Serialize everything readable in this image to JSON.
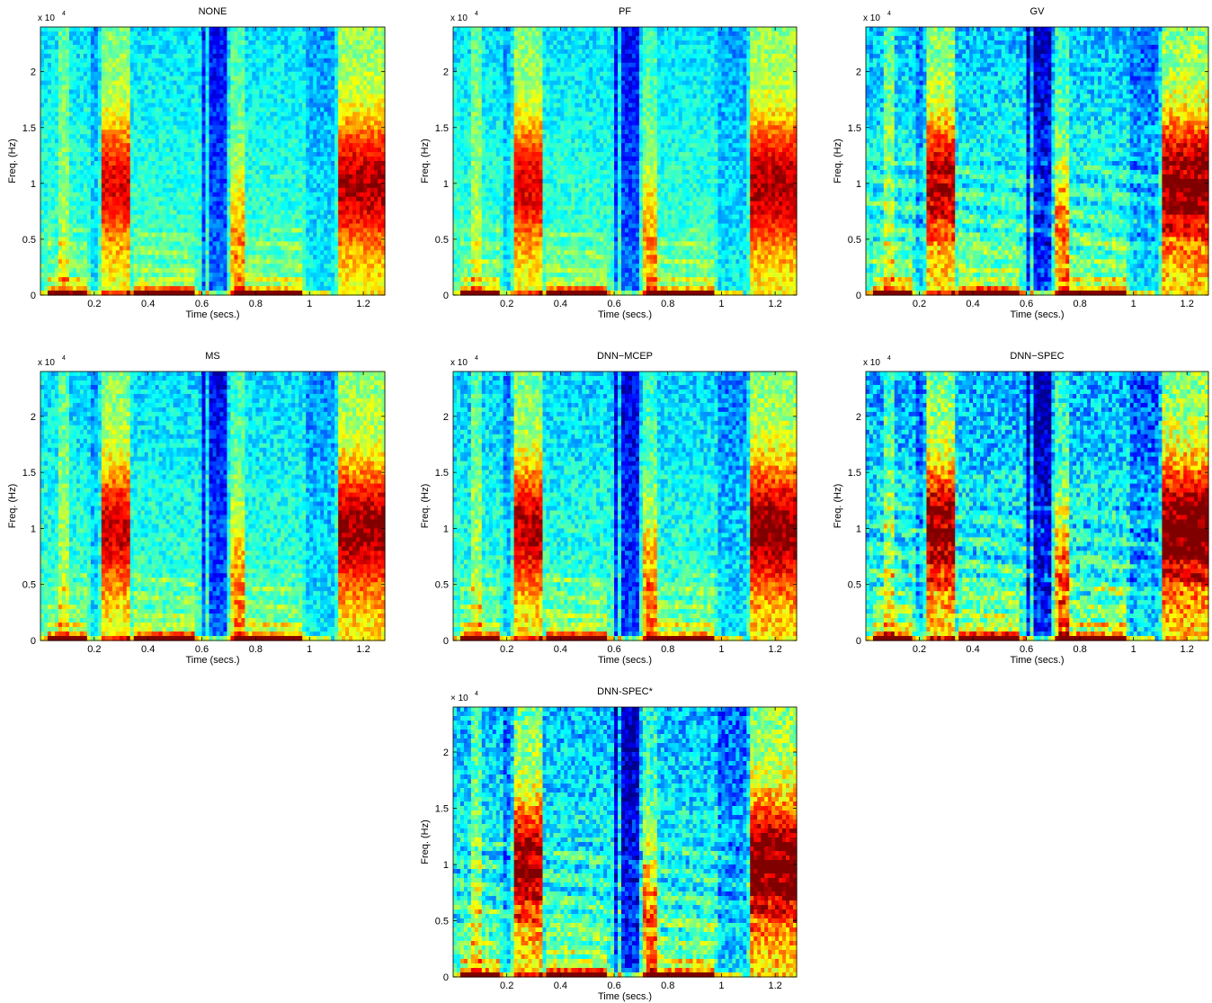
{
  "chart_data": [
    {
      "type": "heatmap",
      "title": "NONE",
      "xlabel": "Time (secs.)",
      "ylabel": "Freq. (Hz)",
      "y_exponent": "x 10",
      "y_exponent_power": "4",
      "xlim": [
        0,
        1.28
      ],
      "ylim": [
        0,
        2.4
      ],
      "xticks": [
        0.2,
        0.4,
        0.6,
        0.8,
        1,
        1.2
      ],
      "xtick_labels": [
        "0.2",
        "0.4",
        "0.6",
        "0.8",
        "1",
        "1.2"
      ],
      "yticks": [
        0,
        0.5,
        1,
        1.5,
        2
      ],
      "ytick_labels": [
        "0",
        "0.5",
        "1",
        "1.5",
        "2"
      ],
      "variant": "none"
    },
    {
      "type": "heatmap",
      "title": "PF",
      "xlabel": "Time (secs.)",
      "ylabel": "Freq. (Hz)",
      "y_exponent": "x 10",
      "y_exponent_power": "4",
      "xlim": [
        0,
        1.28
      ],
      "ylim": [
        0,
        2.4
      ],
      "xticks": [
        0.2,
        0.4,
        0.6,
        0.8,
        1,
        1.2
      ],
      "xtick_labels": [
        "0.2",
        "0.4",
        "0.6",
        "0.8",
        "1",
        "1.2"
      ],
      "yticks": [
        0,
        0.5,
        1,
        1.5,
        2
      ],
      "ytick_labels": [
        "0",
        "0.5",
        "1",
        "1.5",
        "2"
      ],
      "variant": "pf"
    },
    {
      "type": "heatmap",
      "title": "GV",
      "xlabel": "Time (secs.)",
      "ylabel": "Freq. (Hz)",
      "y_exponent": "x 10",
      "y_exponent_power": "4",
      "xlim": [
        0,
        1.28
      ],
      "ylim": [
        0,
        2.4
      ],
      "xticks": [
        0.2,
        0.4,
        0.6,
        0.8,
        1,
        1.2
      ],
      "xtick_labels": [
        "0.2",
        "0.4",
        "0.6",
        "0.8",
        "1",
        "1.2"
      ],
      "yticks": [
        0,
        0.5,
        1,
        1.5,
        2
      ],
      "ytick_labels": [
        "0",
        "0.5",
        "1",
        "1.5",
        "2"
      ],
      "variant": "gv"
    },
    {
      "type": "heatmap",
      "title": "MS",
      "xlabel": "Time (secs.)",
      "ylabel": "Freq. (Hz)",
      "y_exponent": "x 10",
      "y_exponent_power": "4",
      "xlim": [
        0,
        1.28
      ],
      "ylim": [
        0,
        2.4
      ],
      "xticks": [
        0.2,
        0.4,
        0.6,
        0.8,
        1,
        1.2
      ],
      "xtick_labels": [
        "0.2",
        "0.4",
        "0.6",
        "0.8",
        "1",
        "1.2"
      ],
      "yticks": [
        0,
        0.5,
        1,
        1.5,
        2
      ],
      "ytick_labels": [
        "0",
        "0.5",
        "1",
        "1.5",
        "2"
      ],
      "variant": "ms"
    },
    {
      "type": "heatmap",
      "title": "DNN−MCEP",
      "xlabel": "Time (secs.)",
      "ylabel": "Freq. (Hz)",
      "y_exponent": "x 10",
      "y_exponent_power": "4",
      "xlim": [
        0,
        1.28
      ],
      "ylim": [
        0,
        2.4
      ],
      "xticks": [
        0.2,
        0.4,
        0.6,
        0.8,
        1,
        1.2
      ],
      "xtick_labels": [
        "0.2",
        "0.4",
        "0.6",
        "0.8",
        "1",
        "1.2"
      ],
      "yticks": [
        0,
        0.5,
        1,
        1.5,
        2
      ],
      "ytick_labels": [
        "0",
        "0.5",
        "1",
        "1.5",
        "2"
      ],
      "variant": "mcep"
    },
    {
      "type": "heatmap",
      "title": "DNN−SPEC",
      "xlabel": "Time (secs.)",
      "ylabel": "Freq. (Hz)",
      "y_exponent": "x 10",
      "y_exponent_power": "4",
      "xlim": [
        0,
        1.28
      ],
      "ylim": [
        0,
        2.4
      ],
      "xticks": [
        0.2,
        0.4,
        0.6,
        0.8,
        1,
        1.2
      ],
      "xtick_labels": [
        "0.2",
        "0.4",
        "0.6",
        "0.8",
        "1",
        "1.2"
      ],
      "yticks": [
        0,
        0.5,
        1,
        1.5,
        2
      ],
      "ytick_labels": [
        "0",
        "0.5",
        "1",
        "1.5",
        "2"
      ],
      "variant": "spec"
    },
    {
      "type": "heatmap",
      "title": "DNN-SPEC*",
      "xlabel": "Time (secs.)",
      "ylabel": "Freq. (Hz)",
      "y_exponent": "× 10",
      "y_exponent_power": "4",
      "xlim": [
        0,
        1.28
      ],
      "ylim": [
        0,
        2.4
      ],
      "xticks": [
        0.2,
        0.4,
        0.6,
        0.8,
        1,
        1.2
      ],
      "xtick_labels": [
        "0.2",
        "0.4",
        "0.6",
        "0.8",
        "1",
        "1.2"
      ],
      "yticks": [
        0,
        0.5,
        1,
        1.5,
        2
      ],
      "ytick_labels": [
        "0",
        "0.5",
        "1",
        "1.5",
        "2"
      ],
      "variant": "spec2"
    }
  ],
  "colormap": [
    "#00008f",
    "#0000ff",
    "#0080ff",
    "#00ffff",
    "#80ff80",
    "#ffff00",
    "#ff8000",
    "#ff0000",
    "#800000"
  ]
}
